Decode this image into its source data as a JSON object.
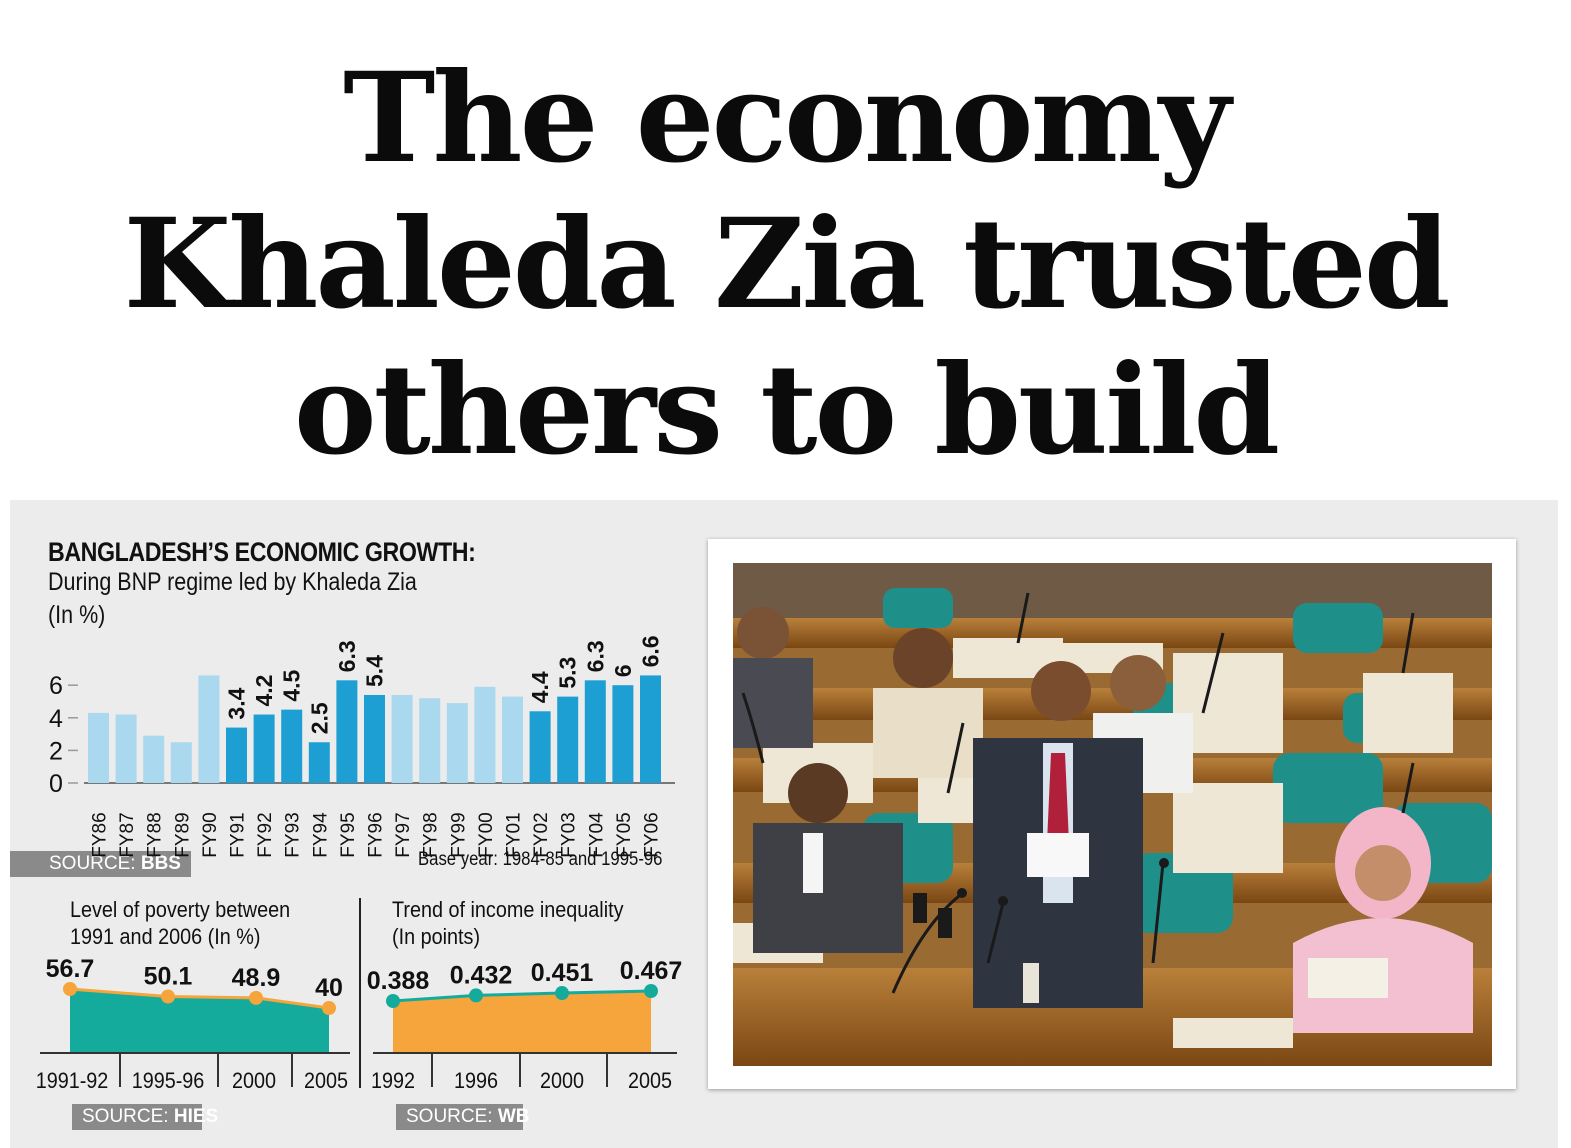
{
  "headline": {
    "lines": [
      "The economy",
      "Khaleda Zia trusted",
      "others to build"
    ]
  },
  "colors": {
    "bnp_bar": "#1e9fd3",
    "other_bar": "#a9d8ef",
    "poverty_area": "#15ab9c",
    "poverty_marker": "#f5a53b",
    "inequality_area": "#f5a53b",
    "inequality_line": "#15ab9c",
    "panel_bg": "#ececec"
  },
  "growth": {
    "title": "BANGLADESH’S ECONOMIC GROWTH:",
    "subtitle": "During BNP regime led by Khaleda Zia",
    "unit": "(In %)",
    "source_prefix": "SOURCE: ",
    "source_name": "BBS",
    "base_year": "Base year: 1984-85 and 1995-96"
  },
  "poverty": {
    "title_lines": [
      "Level of poverty between",
      "1991 and 2006 (In %)"
    ],
    "source_prefix": "SOURCE: ",
    "source_name": "HIES"
  },
  "inequality": {
    "title_lines": [
      "Trend of income inequality",
      "(In points)"
    ],
    "source_prefix": "SOURCE: ",
    "source_name": "WB"
  },
  "chart_data": [
    {
      "type": "bar",
      "categories": [
        "FY86",
        "FY87",
        "FY88",
        "FY89",
        "FY90",
        "FY91",
        "FY92",
        "FY93",
        "FY94",
        "FY95",
        "FY96",
        "FY97",
        "FY98",
        "FY99",
        "FY00",
        "FY01",
        "FY02",
        "FY03",
        "FY04",
        "FY05",
        "FY06"
      ],
      "values": [
        4.3,
        4.2,
        2.9,
        2.5,
        6.6,
        3.4,
        4.2,
        4.5,
        2.5,
        6.3,
        5.4,
        5.4,
        5.2,
        4.9,
        5.9,
        5.3,
        4.4,
        5.3,
        6.3,
        6,
        6.6
      ],
      "highlight": [
        false,
        false,
        false,
        false,
        false,
        true,
        true,
        true,
        true,
        true,
        true,
        false,
        false,
        false,
        false,
        false,
        true,
        true,
        true,
        true,
        true
      ],
      "labels": [
        "",
        "",
        "",
        "",
        "",
        "3.4",
        "4.2",
        "4.5",
        "2.5",
        "6.3",
        "5.4",
        "",
        "",
        "",
        "",
        "",
        "4.4",
        "5.3",
        "6.3",
        "6",
        "6.6"
      ],
      "yticks": [
        "0",
        "2",
        "4",
        "6"
      ],
      "ylim": [
        0,
        7
      ],
      "grid": false
    },
    {
      "type": "area",
      "categories": [
        "1991-92",
        "1995-96",
        "2000",
        "2005"
      ],
      "values": [
        56.7,
        50.1,
        48.9,
        40
      ],
      "labels": [
        "56.7",
        "50.1",
        "48.9",
        "40"
      ]
    },
    {
      "type": "area",
      "categories": [
        "1992",
        "1996",
        "2000",
        "2005"
      ],
      "values": [
        0.388,
        0.432,
        0.451,
        0.467
      ],
      "labels": [
        "0.388",
        "0.432",
        "0.451",
        "0.467"
      ]
    }
  ]
}
